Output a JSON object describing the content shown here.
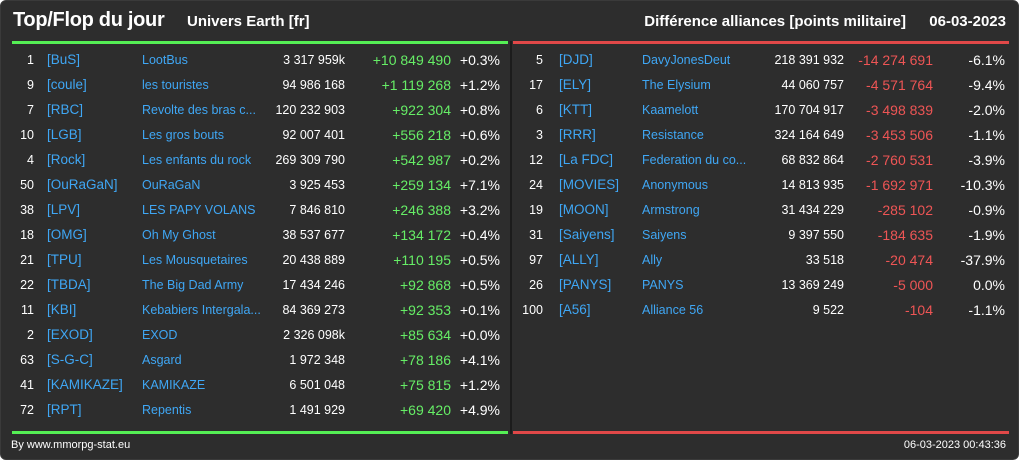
{
  "header": {
    "title": "Top/Flop du jour",
    "universe": "Univers Earth [fr]",
    "metric": "Différence alliances [points militaire]",
    "date": "06-03-2023"
  },
  "colors": {
    "background": "#2d2d2d",
    "top_accent": "#55ee55",
    "flop_accent": "#e04848",
    "link": "#3fa7f5",
    "gain": "#66ee66",
    "loss": "#ee5555"
  },
  "top": [
    {
      "rank": "1",
      "tag": "[BuS]",
      "name": "LootBus",
      "points": "3 317 959k",
      "delta": "+10 849 490",
      "pct": "+0.3%"
    },
    {
      "rank": "9",
      "tag": "[coule]",
      "name": "les touristes",
      "points": "94 986 168",
      "delta": "+1 119 268",
      "pct": "+1.2%"
    },
    {
      "rank": "7",
      "tag": "[RBC]",
      "name": "Revolte des bras c...",
      "points": "120 232 903",
      "delta": "+922 304",
      "pct": "+0.8%"
    },
    {
      "rank": "10",
      "tag": "[LGB]",
      "name": "Les gros bouts",
      "points": "92 007 401",
      "delta": "+556 218",
      "pct": "+0.6%"
    },
    {
      "rank": "4",
      "tag": "[Rock]",
      "name": "Les enfants du rock",
      "points": "269 309 790",
      "delta": "+542 987",
      "pct": "+0.2%"
    },
    {
      "rank": "50",
      "tag": "[OuRaGaN]",
      "name": "OuRaGaN",
      "points": "3 925 453",
      "delta": "+259 134",
      "pct": "+7.1%"
    },
    {
      "rank": "38",
      "tag": "[LPV]",
      "name": "LES PAPY VOLANS",
      "points": "7 846 810",
      "delta": "+246 388",
      "pct": "+3.2%"
    },
    {
      "rank": "18",
      "tag": "[OMG]",
      "name": "Oh My Ghost",
      "points": "38 537 677",
      "delta": "+134 172",
      "pct": "+0.4%"
    },
    {
      "rank": "21",
      "tag": "[TPU]",
      "name": "Les Mousquetaires",
      "points": "20 438 889",
      "delta": "+110 195",
      "pct": "+0.5%"
    },
    {
      "rank": "22",
      "tag": "[TBDA]",
      "name": "The Big Dad Army",
      "points": "17 434 246",
      "delta": "+92 868",
      "pct": "+0.5%"
    },
    {
      "rank": "11",
      "tag": "[KBI]",
      "name": "Kebabiers Intergala...",
      "points": "84 369 273",
      "delta": "+92 353",
      "pct": "+0.1%"
    },
    {
      "rank": "2",
      "tag": "[EXOD]",
      "name": "EXOD",
      "points": "2 326 098k",
      "delta": "+85 634",
      "pct": "+0.0%"
    },
    {
      "rank": "63",
      "tag": "[S-G-C]",
      "name": "Asgard",
      "points": "1 972 348",
      "delta": "+78 186",
      "pct": "+4.1%"
    },
    {
      "rank": "41",
      "tag": "[KAMIKAZE]",
      "name": "KAMIKAZE",
      "points": "6 501 048",
      "delta": "+75 815",
      "pct": "+1.2%"
    },
    {
      "rank": "72",
      "tag": "[RPT]",
      "name": "Repentis",
      "points": "1 491 929",
      "delta": "+69 420",
      "pct": "+4.9%"
    }
  ],
  "flop": [
    {
      "rank": "5",
      "tag": "[DJD]",
      "name": "DavyJonesDeut",
      "points": "218 391 932",
      "delta": "-14 274 691",
      "pct": "-6.1%"
    },
    {
      "rank": "17",
      "tag": "[ELY]",
      "name": "The Elysium",
      "points": "44 060 757",
      "delta": "-4 571 764",
      "pct": "-9.4%"
    },
    {
      "rank": "6",
      "tag": "[KTT]",
      "name": "Kaamelott",
      "points": "170 704 917",
      "delta": "-3 498 839",
      "pct": "-2.0%"
    },
    {
      "rank": "3",
      "tag": "[RRR]",
      "name": "Resistance",
      "points": "324 164 649",
      "delta": "-3 453 506",
      "pct": "-1.1%"
    },
    {
      "rank": "12",
      "tag": "[La FDC]",
      "name": "Federation du co...",
      "points": "68 832 864",
      "delta": "-2 760 531",
      "pct": "-3.9%"
    },
    {
      "rank": "24",
      "tag": "[MOVIES]",
      "name": "Anonymous",
      "points": "14 813 935",
      "delta": "-1 692 971",
      "pct": "-10.3%"
    },
    {
      "rank": "19",
      "tag": "[MOON]",
      "name": "Armstrong",
      "points": "31 434 229",
      "delta": "-285 102",
      "pct": "-0.9%"
    },
    {
      "rank": "31",
      "tag": "[Saiyens]",
      "name": "Saiyens",
      "points": "9 397 550",
      "delta": "-184 635",
      "pct": "-1.9%"
    },
    {
      "rank": "97",
      "tag": "[ALLY]",
      "name": "Ally",
      "points": "33 518",
      "delta": "-20 474",
      "pct": "-37.9%"
    },
    {
      "rank": "26",
      "tag": "[PANYS]",
      "name": "PANYS",
      "points": "13 369 249",
      "delta": "-5 000",
      "pct": "0.0%"
    },
    {
      "rank": "100",
      "tag": "[A56]",
      "name": "Alliance 56",
      "points": "9 522",
      "delta": "-104",
      "pct": "-1.1%"
    }
  ],
  "footer": {
    "source": "By www.mmorpg-stat.eu",
    "timestamp": "06-03-2023 00:43:36"
  }
}
